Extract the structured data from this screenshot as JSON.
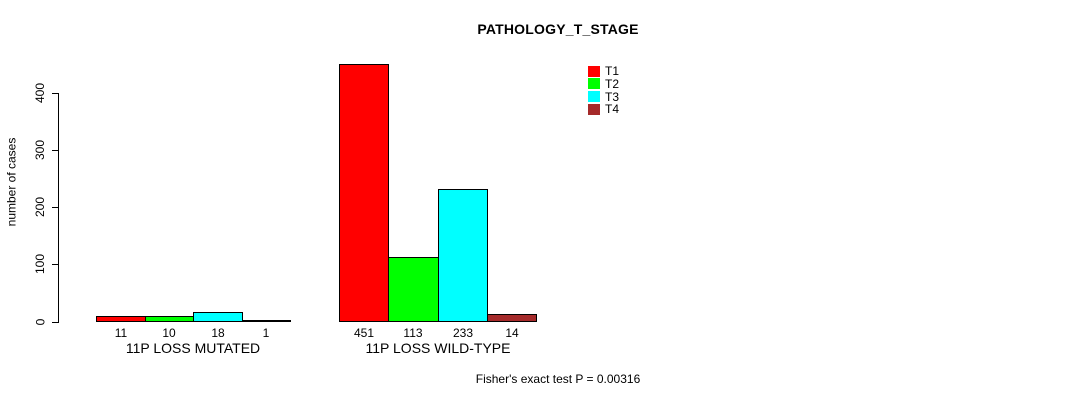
{
  "chart_data": {
    "type": "bar",
    "title": "PATHOLOGY_T_STAGE",
    "ylabel": "number of cases",
    "xlabel": "",
    "categories": [
      "11P LOSS MUTATED",
      "11P LOSS WILD-TYPE"
    ],
    "series": [
      {
        "name": "T1",
        "color": "#ff0000",
        "values": [
          11,
          451
        ]
      },
      {
        "name": "T2",
        "color": "#00ff00",
        "values": [
          10,
          113
        ]
      },
      {
        "name": "T3",
        "color": "#00ffff",
        "values": [
          18,
          233
        ]
      },
      {
        "name": "T4",
        "color": "#a52a2a",
        "values": [
          1,
          14
        ]
      }
    ],
    "yticks": [
      0,
      100,
      200,
      300,
      400
    ],
    "ylim": [
      0,
      400
    ],
    "grid": false,
    "legend_position": "top-right",
    "bar_border_color": "#000000",
    "axis_color": "#000000",
    "background": "#ffffff",
    "annotation": "Fisher's exact test P = 0.00316"
  }
}
